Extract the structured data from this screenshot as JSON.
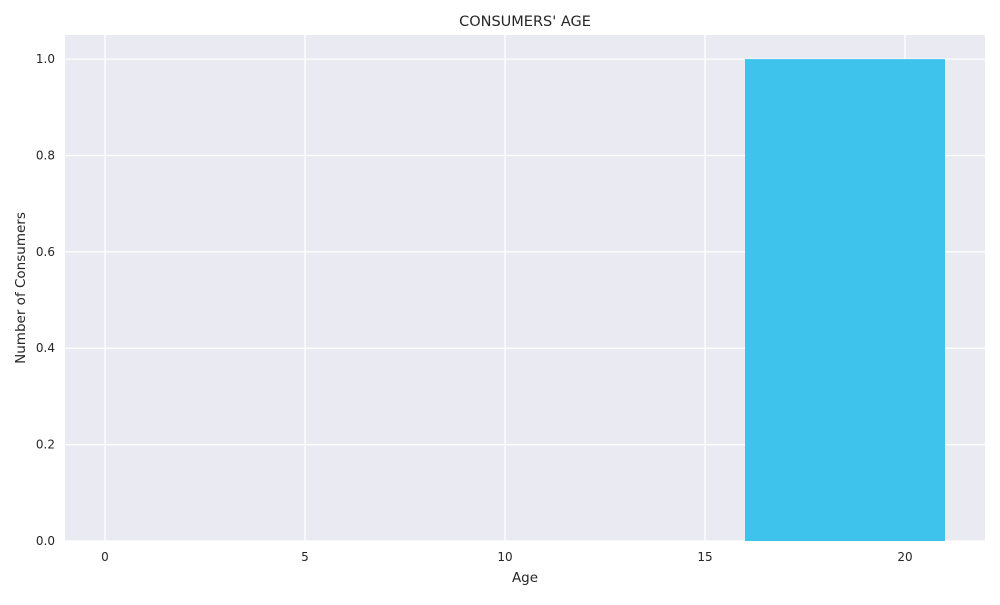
{
  "chart_data": {
    "type": "bar",
    "title": "CONSUMERS' AGE",
    "xlabel": "Age",
    "ylabel": "Number of Consumers",
    "xlim": [
      -1,
      22
    ],
    "ylim": [
      0,
      1.05
    ],
    "xticks": [
      0,
      5,
      10,
      15,
      20
    ],
    "yticks": [
      0.0,
      0.2,
      0.4,
      0.6,
      0.8,
      1.0
    ],
    "xtick_labels": [
      "0",
      "5",
      "10",
      "15",
      "20"
    ],
    "ytick_labels": [
      "0.0",
      "0.2",
      "0.4",
      "0.6",
      "0.8",
      "1.0"
    ],
    "bars": [
      {
        "x_start": 16,
        "x_end": 21,
        "value": 1.0
      }
    ],
    "grid": true,
    "colors": {
      "plot_background": "#eaeaf2",
      "grid": "#ffffff",
      "bar": "#3ec4ec"
    }
  }
}
